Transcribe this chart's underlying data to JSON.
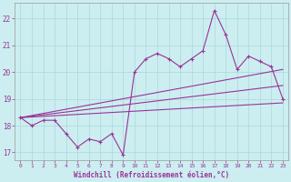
{
  "xlabel": "Windchill (Refroidissement éolien,°C)",
  "background_color": "#cceef0",
  "grid_color": "#aad8dc",
  "line_color": "#993399",
  "xlim": [
    -0.5,
    23.5
  ],
  "ylim": [
    16.7,
    22.6
  ],
  "yticks": [
    17,
    18,
    19,
    20,
    21,
    22
  ],
  "xticks": [
    0,
    1,
    2,
    3,
    4,
    5,
    6,
    7,
    8,
    9,
    10,
    11,
    12,
    13,
    14,
    15,
    16,
    17,
    18,
    19,
    20,
    21,
    22,
    23
  ],
  "main_line_x": [
    0,
    1,
    2,
    3,
    4,
    5,
    6,
    7,
    8,
    9,
    10,
    11,
    12,
    13,
    14,
    15,
    16,
    17,
    18,
    19,
    20,
    21,
    22,
    23
  ],
  "main_line_y": [
    18.3,
    18.0,
    18.2,
    18.2,
    17.7,
    17.2,
    17.5,
    17.4,
    17.7,
    16.9,
    20.0,
    20.5,
    20.7,
    20.5,
    20.2,
    20.5,
    20.8,
    22.3,
    21.4,
    20.1,
    20.6,
    20.4,
    20.2,
    19.0
  ],
  "trend_lines": [
    {
      "x": [
        0,
        23
      ],
      "y": [
        18.3,
        18.85
      ]
    },
    {
      "x": [
        0,
        23
      ],
      "y": [
        18.3,
        19.5
      ]
    },
    {
      "x": [
        0,
        23
      ],
      "y": [
        18.3,
        20.1
      ]
    }
  ]
}
